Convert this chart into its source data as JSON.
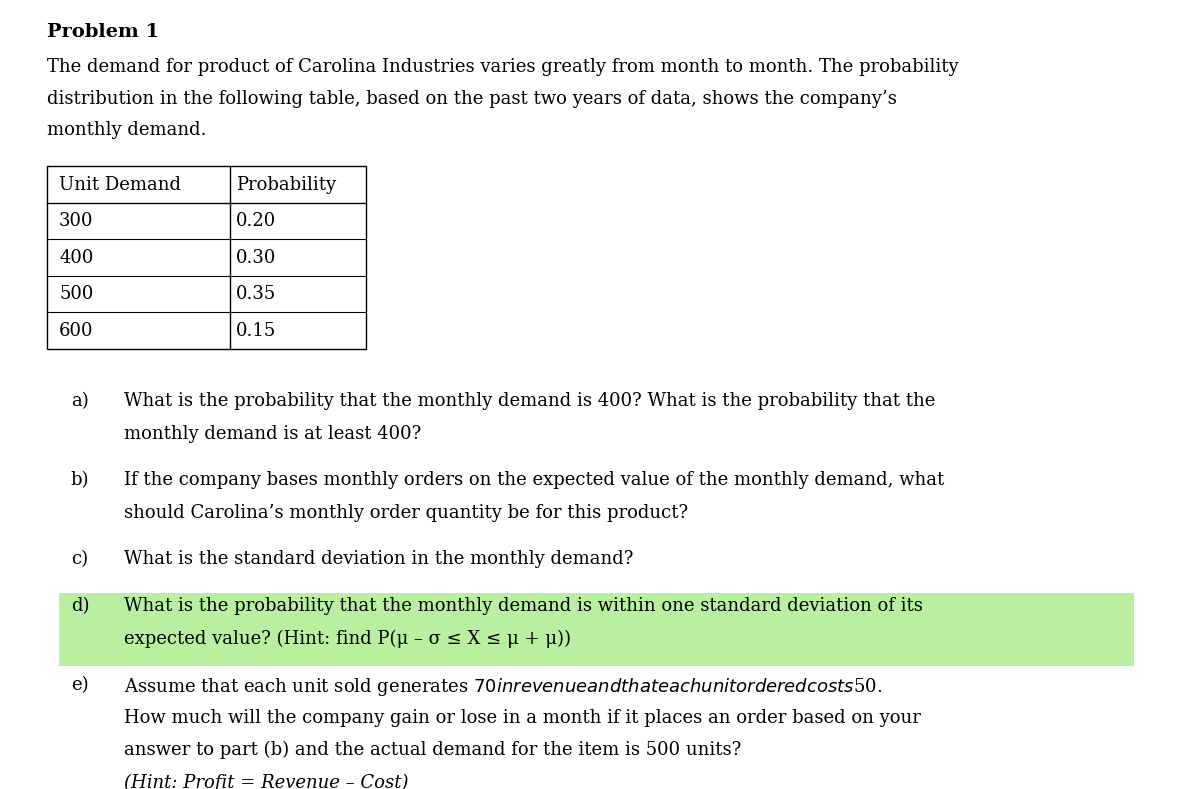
{
  "title": "Problem 1",
  "intro_text": "The demand for product of Carolina Industries varies greatly from month to month. The probability\ndistribution in the following table, based on the past two years of data, shows the company’s\nmonthly demand.",
  "table_headers": [
    "Unit Demand",
    "Probability"
  ],
  "table_rows": [
    [
      "300",
      "0.20"
    ],
    [
      "400",
      "0.30"
    ],
    [
      "500",
      "0.35"
    ],
    [
      "600",
      "0.15"
    ]
  ],
  "questions": [
    {
      "label": "a)",
      "text": "What is the probability that the monthly demand is 400? What is the probability that the\nmonthly demand is at least 400?",
      "highlight": false
    },
    {
      "label": "b)",
      "text": "If the company bases monthly orders on the expected value of the monthly demand, what\nshould Carolina’s monthly order quantity be for this product?",
      "highlight": false
    },
    {
      "label": "c)",
      "text": "What is the standard deviation in the monthly demand?",
      "highlight": false
    },
    {
      "label": "d)",
      "text": "What is the probability that the monthly demand is within one standard deviation of its\nexpected value? (Hint: find P(μ – σ ≤ X ≤ μ + μ))",
      "highlight": true
    },
    {
      "label": "e)",
      "text": "Assume that each unit sold generates $70 in revenue and that each unit ordered costs $50.\nHow much will the company gain or lose in a month if it places an order based on your\nanswer to part (b) and the actual demand for the item is 500 units?\n(Hint: Profit = Revenue – Cost)",
      "highlight": false
    }
  ],
  "background_color": "#ffffff",
  "text_color": "#000000",
  "highlight_color": "#b8f0a0",
  "font_size": 13,
  "title_font_size": 14
}
